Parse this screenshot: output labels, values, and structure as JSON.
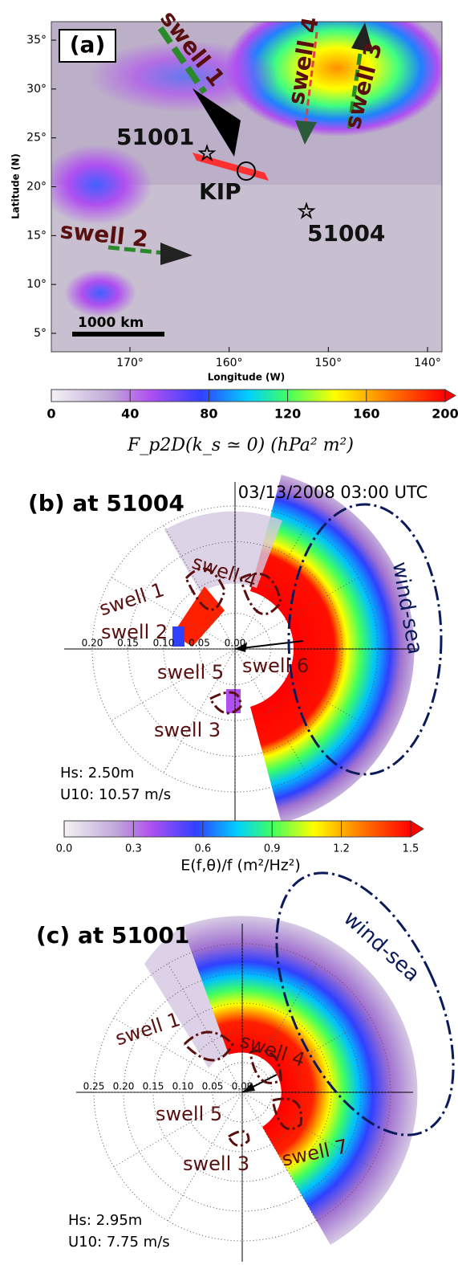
{
  "panel_a": {
    "label": "(a)",
    "ylabel": "Latitude (N)",
    "xlabel": "Longitude (W)",
    "yticks": [
      {
        "value": 35,
        "label": "35°"
      },
      {
        "value": 30,
        "label": "30°"
      },
      {
        "value": 25,
        "label": "25°"
      },
      {
        "value": 20,
        "label": "20°"
      },
      {
        "value": 15,
        "label": "15°"
      },
      {
        "value": 10,
        "label": "10°"
      },
      {
        "value": 5,
        "label": "5°"
      }
    ],
    "xticks": [
      {
        "value": 170,
        "label": "170°"
      },
      {
        "value": 160,
        "label": "160°"
      },
      {
        "value": 150,
        "label": "150°"
      },
      {
        "value": 140,
        "label": "140°"
      }
    ],
    "swell1": "swell 1",
    "swell2": "swell 2",
    "swell3": "swell 3",
    "swell4": "swell 4",
    "buoy1": "51001",
    "kip": "KIP",
    "buoy2": "51004",
    "scale": "1000 km",
    "colorbar": {
      "ticks": [
        0,
        40,
        80,
        120,
        160,
        200
      ],
      "label": "F_p2D(k_s ≃ 0)  (hPa² m²)"
    }
  },
  "panel_b": {
    "label": "(b) at 51004",
    "time": "03/13/2008 03:00 UTC",
    "radial_ticks": [
      {
        "value": 0.2,
        "label": "0.20"
      },
      {
        "value": 0.15,
        "label": "0.15"
      },
      {
        "value": 0.1,
        "label": "0.10"
      },
      {
        "value": 0.05,
        "label": "0.05"
      },
      {
        "value": 0,
        "label": "0.00"
      }
    ],
    "swell1": "swell 1",
    "swell2": "swell 2",
    "swell3": "swell 3",
    "swell4": "swell 4",
    "swell5": "swell 5",
    "swell6": "swell 6",
    "windsea": "wind-sea",
    "hs": "Hs: 2.50m",
    "u10": "U10: 10.57 m/s",
    "colorbar": {
      "ticks": [
        {
          "value": 0,
          "label": "0.0"
        },
        {
          "value": 0.3,
          "label": "0.3"
        },
        {
          "value": 0.6,
          "label": "0.6"
        },
        {
          "value": 0.9,
          "label": "0.9"
        },
        {
          "value": 1.2,
          "label": "1.2"
        },
        {
          "value": 1.5,
          "label": "1.5"
        }
      ],
      "label": "E(f,θ)/f (m²/Hz²)"
    }
  },
  "panel_c": {
    "label": "(c) at 51001",
    "radial_ticks": [
      {
        "value": 0.25,
        "label": "0.25"
      },
      {
        "value": 0.2,
        "label": "0.20"
      },
      {
        "value": 0.15,
        "label": "0.15"
      },
      {
        "value": 0.1,
        "label": "0.10"
      },
      {
        "value": 0.05,
        "label": "0.05"
      },
      {
        "value": 0,
        "label": "0.00"
      }
    ],
    "swell1": "swell 1",
    "swell3": "swell 3",
    "swell4": "swell 4",
    "swell5": "swell 5",
    "swell7": "swell 7",
    "windsea": "wind-sea",
    "hs": "Hs: 2.95m",
    "u10": "U10: 7.75 m/s"
  }
}
